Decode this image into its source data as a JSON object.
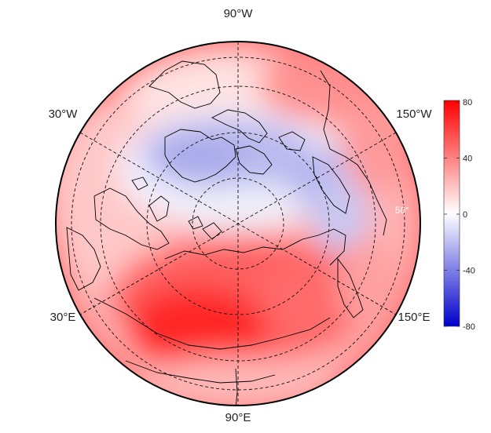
{
  "map": {
    "projection": "north-polar-stereographic",
    "longitude_labels": [
      {
        "id": "lon-90w",
        "text": "90°W"
      },
      {
        "id": "lon-30w",
        "text": "30°W"
      },
      {
        "id": "lon-150w",
        "text": "150°W"
      },
      {
        "id": "lon-30e",
        "text": "30°E"
      },
      {
        "id": "lon-150e",
        "text": "150°E"
      },
      {
        "id": "lon-90e",
        "text": "90°E"
      }
    ],
    "latitude_label": "50°",
    "colors": {
      "positive": "#ff0000",
      "neutral": "#ffffff",
      "negative": "#0000cc",
      "coastline": "#000000",
      "graticule": "#000000"
    }
  },
  "colorbar": {
    "min": -80,
    "max": 80,
    "ticks": [
      "80",
      "40",
      "0",
      "-40",
      "-80"
    ],
    "tick_values": [
      80,
      40,
      0,
      -40,
      -80
    ],
    "colors": [
      "#0000cc",
      "#ffffff",
      "#ff0000"
    ]
  }
}
